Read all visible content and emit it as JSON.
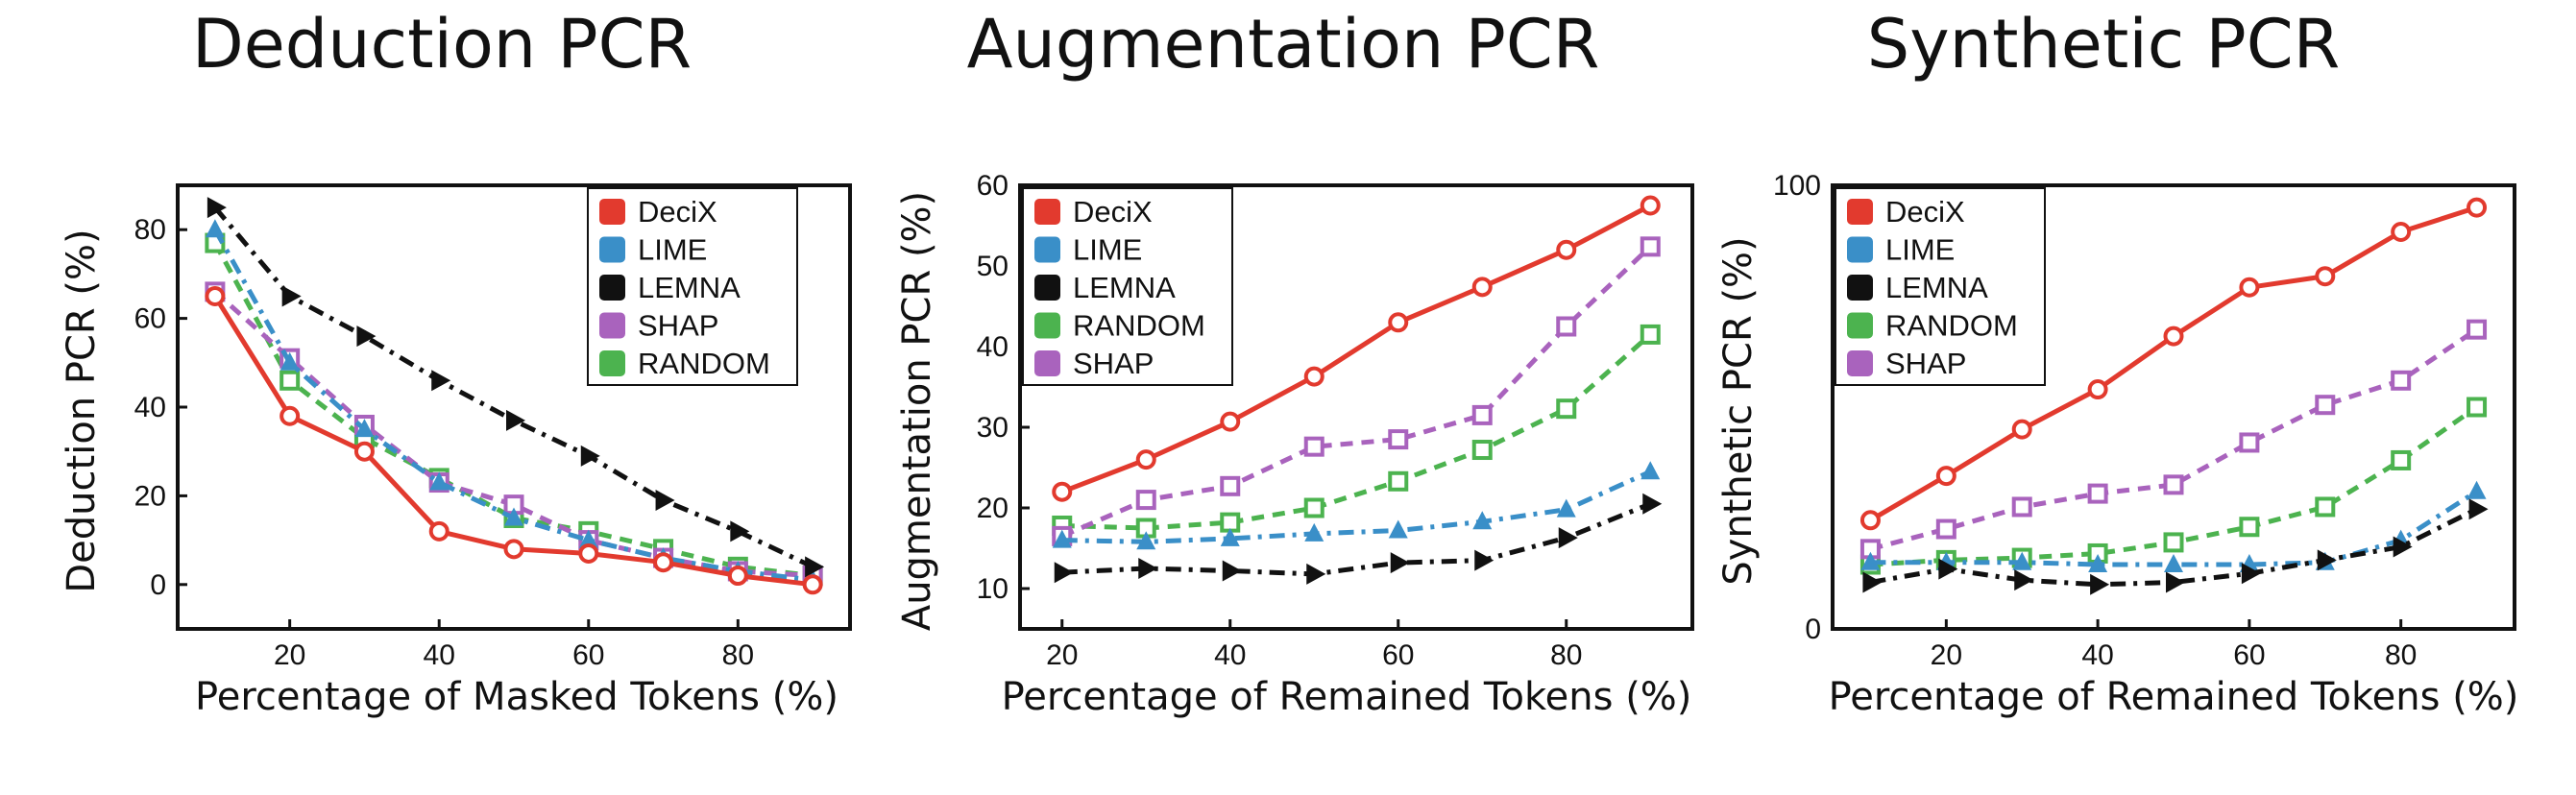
{
  "colors": {
    "DeciX": "#e23a2e",
    "LIME": "#3a8fc8",
    "LEMNA": "#111111",
    "SHAP": "#a963bd",
    "RANDOM": "#4cb34f"
  },
  "chart_data": [
    {
      "type": "line",
      "title": "Deduction PCR",
      "xlabel": "Percentage of Masked Tokens (%)",
      "ylabel": "Deduction PCR (%)",
      "xlim": [
        5,
        95
      ],
      "ylim": [
        -10,
        90
      ],
      "xticks": [
        20,
        40,
        60,
        80
      ],
      "yticks": [
        0,
        20,
        40,
        60,
        80
      ],
      "legend_position": "top-right",
      "legend": [
        "DeciX",
        "LIME",
        "LEMNA",
        "SHAP",
        "RANDOM"
      ],
      "x": [
        10,
        20,
        30,
        40,
        50,
        60,
        70,
        80,
        90
      ],
      "series": [
        {
          "name": "DeciX",
          "marker": "circle",
          "dash": "solid",
          "values": [
            65,
            38,
            30,
            12,
            8,
            7,
            5,
            2,
            0
          ]
        },
        {
          "name": "LIME",
          "marker": "triangle-up",
          "dash": "dashdot",
          "values": [
            80,
            50,
            35,
            23,
            15,
            10,
            6,
            3,
            1
          ]
        },
        {
          "name": "LEMNA",
          "marker": "triangle-right",
          "dash": "dashdot",
          "values": [
            85,
            65,
            56,
            46,
            37,
            29,
            19,
            12,
            4
          ]
        },
        {
          "name": "SHAP",
          "marker": "square",
          "dash": "dash",
          "values": [
            66,
            51,
            36,
            23,
            18,
            10,
            6,
            3,
            2
          ]
        },
        {
          "name": "RANDOM",
          "marker": "square",
          "dash": "dash",
          "values": [
            77,
            46,
            33,
            24,
            15,
            12,
            8,
            4,
            2
          ]
        }
      ]
    },
    {
      "type": "line",
      "title": "Augmentation PCR",
      "xlabel": "Percentage of Remained Tokens (%)",
      "ylabel": "Augmentation PCR (%)",
      "xlim": [
        15,
        95
      ],
      "ylim": [
        5,
        60
      ],
      "xticks": [
        20,
        40,
        60,
        80
      ],
      "yticks": [
        10,
        20,
        30,
        40,
        50,
        60
      ],
      "legend_position": "top-left",
      "legend": [
        "DeciX",
        "LIME",
        "LEMNA",
        "RANDOM",
        "SHAP"
      ],
      "x": [
        20,
        30,
        40,
        50,
        60,
        70,
        80,
        90
      ],
      "series": [
        {
          "name": "DeciX",
          "marker": "circle",
          "dash": "solid",
          "values": [
            22,
            26,
            30.7,
            36.3,
            43,
            47.4,
            52,
            57.5
          ]
        },
        {
          "name": "LIME",
          "marker": "triangle-up",
          "dash": "dashdot",
          "values": [
            16,
            15.8,
            16.2,
            16.8,
            17.2,
            18.3,
            19.8,
            24.5
          ]
        },
        {
          "name": "LEMNA",
          "marker": "triangle-right",
          "dash": "dashdot",
          "values": [
            12,
            12.5,
            12.2,
            11.8,
            13.2,
            13.5,
            16.3,
            20.5
          ]
        },
        {
          "name": "RANDOM",
          "marker": "square",
          "dash": "dash",
          "values": [
            17.8,
            17.5,
            18.2,
            20,
            23.3,
            27.2,
            32.3,
            41.5
          ]
        },
        {
          "name": "SHAP",
          "marker": "square",
          "dash": "dash",
          "values": [
            16.5,
            21,
            22.7,
            27.6,
            28.5,
            31.5,
            42.5,
            52.4
          ]
        }
      ]
    },
    {
      "type": "line",
      "title": "Synthetic PCR",
      "xlabel": "Percentage of Remained Tokens (%)",
      "ylabel": "Synthetic PCR (%)",
      "xlim": [
        5,
        95
      ],
      "ylim": [
        0,
        100
      ],
      "xticks": [
        20,
        40,
        60,
        80
      ],
      "yticks": [
        0,
        100
      ],
      "legend_position": "top-left",
      "legend": [
        "DeciX",
        "LIME",
        "LEMNA",
        "RANDOM",
        "SHAP"
      ],
      "x": [
        10,
        20,
        30,
        40,
        50,
        60,
        70,
        80,
        90
      ],
      "series": [
        {
          "name": "DeciX",
          "marker": "circle",
          "dash": "solid",
          "values": [
            24.5,
            34.5,
            45,
            54,
            66,
            77,
            79.5,
            89.5,
            95
          ]
        },
        {
          "name": "LIME",
          "marker": "triangle-up",
          "dash": "dashdot",
          "values": [
            15,
            15,
            15,
            14.5,
            14.5,
            14.5,
            15,
            20,
            31
          ]
        },
        {
          "name": "LEMNA",
          "marker": "triangle-right",
          "dash": "dashdot",
          "values": [
            10.5,
            13.5,
            11,
            10,
            10.5,
            12.5,
            15.5,
            18.5,
            27
          ]
        },
        {
          "name": "RANDOM",
          "marker": "square",
          "dash": "dash",
          "values": [
            14.5,
            15.5,
            16,
            17,
            19.5,
            23,
            27.5,
            38,
            50
          ]
        },
        {
          "name": "SHAP",
          "marker": "square",
          "dash": "dash",
          "values": [
            18,
            22.5,
            27.5,
            30.5,
            32.5,
            42,
            50.5,
            56,
            67.5
          ]
        }
      ]
    }
  ]
}
